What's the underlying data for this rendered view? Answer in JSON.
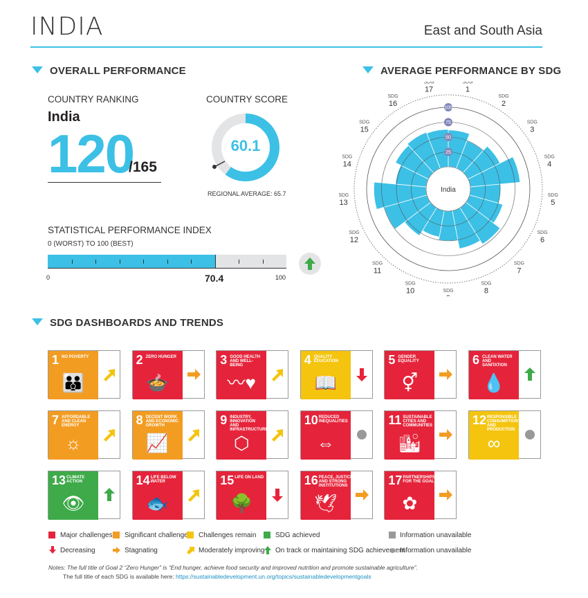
{
  "header": {
    "country": "INDIA",
    "region": "East and South Asia"
  },
  "overall": {
    "section_title": "OVERALL PERFORMANCE",
    "ranking_label": "COUNTRY RANKING",
    "ranking_country": "India",
    "rank": "120",
    "rank_total": "/165",
    "score_label": "COUNTRY SCORE",
    "score": "60.1",
    "score_value": 60.1,
    "regional_average": "REGIONAL AVERAGE: 65.7",
    "spi_title": "STATISTICAL PERFORMANCE INDEX",
    "spi_subtitle": "0 (WORST) TO 100 (BEST)",
    "spi_value": 70.4,
    "spi_value_label": "70.4",
    "spi_min": "0",
    "spi_max": "100",
    "spi_trend": "up"
  },
  "radar": {
    "section_title": "AVERAGE PERFORMANCE BY SDG",
    "center_label": "India",
    "ring_labels": [
      "25",
      "50",
      "75",
      "100"
    ],
    "sdg_prefix": "SDG",
    "sdgs": [
      "1",
      "2",
      "3",
      "4",
      "5",
      "6",
      "7",
      "8",
      "9",
      "10",
      "11",
      "12",
      "13",
      "14",
      "15",
      "16",
      "17"
    ]
  },
  "chart_data": {
    "type": "radar",
    "categories": [
      "SDG 1",
      "SDG 2",
      "SDG 3",
      "SDG 4",
      "SDG 5",
      "SDG 6",
      "SDG 7",
      "SDG 8",
      "SDG 9",
      "SDG 10",
      "SDG 11",
      "SDG 12",
      "SDG 13",
      "SDG 14",
      "SDG 15",
      "SDG 16",
      "SDG 17"
    ],
    "values": [
      62,
      50,
      60,
      84,
      51,
      58,
      72,
      65,
      50,
      45,
      55,
      75,
      88,
      52,
      62,
      65,
      63
    ],
    "ylim": [
      0,
      100
    ]
  },
  "dashboards": {
    "section_title": "SDG DASHBOARDS AND TRENDS",
    "tiles": [
      {
        "num": "1",
        "name": "NO POVERTY",
        "color": "#f39c22",
        "trend": "moderate",
        "icon": "👪"
      },
      {
        "num": "2",
        "name": "ZERO HUNGER",
        "color": "#e5243b",
        "trend": "stagnating",
        "icon": "🍲"
      },
      {
        "num": "3",
        "name": "GOOD HEALTH AND WELL-BEING",
        "color": "#e5243b",
        "trend": "moderate",
        "icon": "〰♥"
      },
      {
        "num": "4",
        "name": "QUALITY EDUCATION",
        "color": "#f4c40f",
        "trend": "decreasing",
        "icon": "📖"
      },
      {
        "num": "5",
        "name": "GENDER EQUALITY",
        "color": "#e5243b",
        "trend": "stagnating",
        "icon": "⚥"
      },
      {
        "num": "6",
        "name": "CLEAN WATER AND SANITATION",
        "color": "#e5243b",
        "trend": "ontrack",
        "icon": "💧"
      },
      {
        "num": "7",
        "name": "AFFORDABLE AND CLEAN ENERGY",
        "color": "#f39c22",
        "trend": "moderate",
        "icon": "☼"
      },
      {
        "num": "8",
        "name": "DECENT WORK AND ECONOMIC GROWTH",
        "color": "#f39c22",
        "trend": "moderate",
        "icon": "📈"
      },
      {
        "num": "9",
        "name": "INDUSTRY, INNOVATION AND INFRASTRUCTURE",
        "color": "#e5243b",
        "trend": "moderate",
        "icon": "⬡"
      },
      {
        "num": "10",
        "name": "REDUCED INEQUALITIES",
        "color": "#e5243b",
        "trend": "na",
        "icon": "⇔"
      },
      {
        "num": "11",
        "name": "SUSTAINABLE CITIES AND COMMUNITIES",
        "color": "#e5243b",
        "trend": "stagnating",
        "icon": "🏙"
      },
      {
        "num": "12",
        "name": "RESPONSIBLE CONSUMPTION AND PRODUCTION",
        "color": "#f4c40f",
        "trend": "na",
        "icon": "∞"
      },
      {
        "num": "13",
        "name": "CLIMATE ACTION",
        "color": "#3eaa49",
        "trend": "ontrack",
        "icon": "👁"
      },
      {
        "num": "14",
        "name": "LIFE BELOW WATER",
        "color": "#e5243b",
        "trend": "moderate",
        "icon": "🐟"
      },
      {
        "num": "15",
        "name": "LIFE ON LAND",
        "color": "#e5243b",
        "trend": "decreasing",
        "icon": "🌳"
      },
      {
        "num": "16",
        "name": "PEACE, JUSTICE AND STRONG INSTITUTIONS",
        "color": "#e5243b",
        "trend": "stagnating",
        "icon": "🕊"
      },
      {
        "num": "17",
        "name": "PARTNERSHIPS FOR THE GOALS",
        "color": "#e5243b",
        "trend": "stagnating",
        "icon": "✿"
      }
    ]
  },
  "legend": {
    "major": "Major challenges",
    "significant": "Significant challenges",
    "remain": "Challenges remain",
    "achieved": "SDG achieved",
    "unavailable": "Information unavailable",
    "decreasing": "Decreasing",
    "stagnating": "Stagnating",
    "moderate": "Moderately improving",
    "ontrack": "On track or maintaining SDG achievement",
    "unavailable2": "Information unavailable"
  },
  "notes": {
    "line1": "Notes: The full title of Goal 2 “Zero Hunger” is “End hunger, achieve food security and improved nutrition and promote sustainable agriculture”.",
    "line2_prefix": "The full title of each SDG is available here: ",
    "line2_link": "https://sustainabledevelopment.un.org/topics/sustainabledevelopmentgoals"
  },
  "colors": {
    "accent": "#3cc0e6",
    "red": "#e5243b",
    "orange": "#f39c22",
    "yellow": "#f4c40f",
    "green": "#3eaa49",
    "grey": "#999999",
    "ring_dot": "#8087b8"
  }
}
